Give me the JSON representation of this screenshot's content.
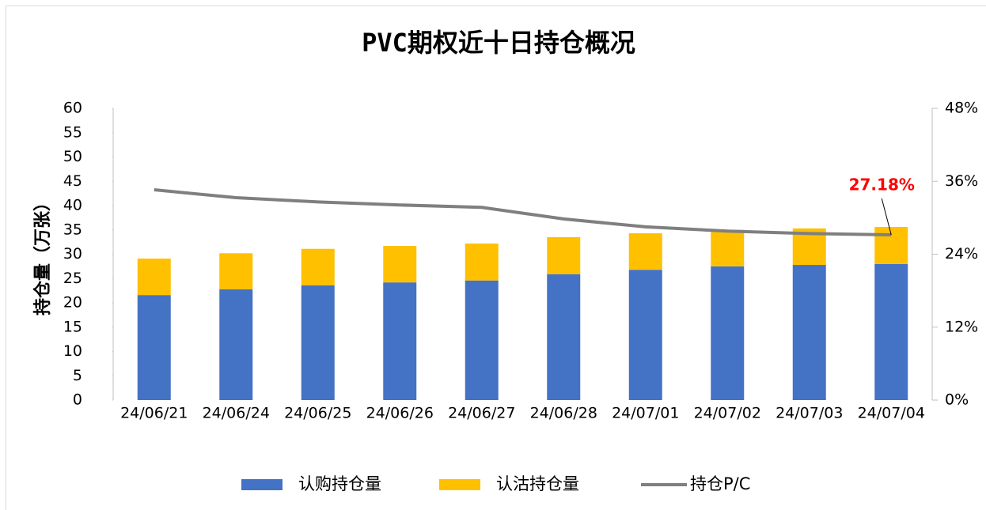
{
  "chart_data": {
    "type": "bar-line",
    "title": "PVC期权近十日持仓概况",
    "y_label": "持仓量（万张）",
    "categories": [
      "24/06/21",
      "24/06/24",
      "24/06/25",
      "24/06/26",
      "24/06/27",
      "24/06/28",
      "24/07/01",
      "24/07/02",
      "24/07/03",
      "24/07/04"
    ],
    "series": [
      {
        "name": "认购持仓量",
        "color": "#4472c4",
        "type": "bar",
        "values": [
          21.6,
          22.8,
          23.6,
          24.2,
          24.6,
          25.9,
          26.8,
          27.5,
          27.8,
          28.0
        ]
      },
      {
        "name": "认沽持仓量",
        "color": "#ffc000",
        "type": "bar",
        "values": [
          7.5,
          7.4,
          7.5,
          7.5,
          7.6,
          7.6,
          7.5,
          7.5,
          7.5,
          7.6
        ]
      },
      {
        "name": "持仓P/C",
        "color": "#7f7f7f",
        "type": "line",
        "axis": "y2",
        "values": [
          34.6,
          33.3,
          32.6,
          32.1,
          31.7,
          29.8,
          28.5,
          27.8,
          27.4,
          27.18
        ],
        "value_labels": [
          null,
          null,
          null,
          null,
          null,
          null,
          null,
          null,
          null,
          "27.18%"
        ]
      }
    ],
    "ylim": [
      0,
      60
    ],
    "yticks": [
      0,
      5,
      10,
      15,
      20,
      25,
      30,
      35,
      40,
      45,
      50,
      55,
      60
    ],
    "y2lim": [
      0,
      48
    ],
    "y2ticks": [
      {
        "value": 0,
        "label": "0%"
      },
      {
        "value": 12,
        "label": "12%"
      },
      {
        "value": 24,
        "label": "24%"
      },
      {
        "value": 36,
        "label": "36%"
      },
      {
        "value": 48,
        "label": "48%"
      }
    ],
    "legend": "bottom"
  }
}
